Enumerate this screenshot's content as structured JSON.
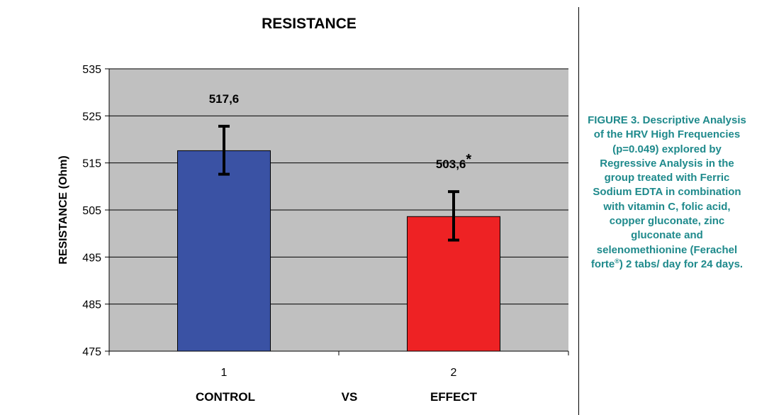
{
  "chart_data": {
    "type": "bar",
    "title": "RESISTANCE",
    "ylabel": "RESISTANCE (Ohm)",
    "ylim": [
      475,
      535
    ],
    "yticks": [
      475,
      485,
      495,
      505,
      515,
      525,
      535
    ],
    "grid": true,
    "plot_background": "#c0c0c0",
    "categories": [
      "1",
      "2"
    ],
    "category_labels": [
      "CONTROL",
      "EFFECT"
    ],
    "separator_label": "VS",
    "values": [
      517.6,
      503.6
    ],
    "error_low": [
      512.6,
      498.6
    ],
    "error_high": [
      522.8,
      508.9
    ],
    "data_labels": [
      "517,6",
      "503,6"
    ],
    "data_label_marks": [
      "",
      "*"
    ],
    "colors": [
      "#3a52a4",
      "#ee2224"
    ]
  },
  "caption": {
    "figure": "FIGURE 3.",
    "text_before": " Descriptive Analysis of the HRV High Frequencies (p=0.049) explored by Regressive Analysis in the group treated with Ferric Sodium EDTA in combination with vitamin C, folic acid, copper gluconate, zinc gluconate and selenomethionine (Ferachel forte",
    "superscript": "®",
    "text_after": ") 2 tabs/ day for 24 days.",
    "color": "#1f8a8c"
  }
}
